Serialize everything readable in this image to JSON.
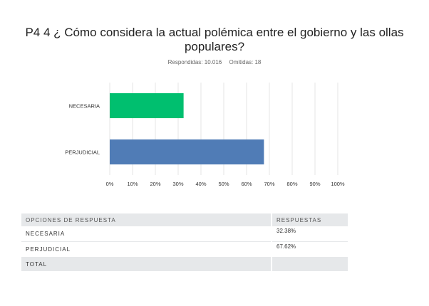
{
  "question": {
    "title_line1": "P4 4 ¿ Cómo considera la actual polémica entre el gobierno y las ollas",
    "title_line2": "populares?"
  },
  "stats": {
    "answered": "Respondidas: 10.016",
    "skipped": "Omitidas: 18"
  },
  "chart_data": {
    "type": "bar",
    "orientation": "horizontal",
    "categories": [
      "NECESARIA",
      "PERJUDICIAL"
    ],
    "values": [
      32.38,
      67.62
    ],
    "colors": [
      "#00bf6f",
      "#507cb6"
    ],
    "xlim": [
      0,
      100
    ],
    "xticks": [
      "0%",
      "10%",
      "20%",
      "30%",
      "40%",
      "50%",
      "60%",
      "70%",
      "80%",
      "90%",
      "100%"
    ],
    "grid": true,
    "title": "",
    "xlabel": "",
    "ylabel": ""
  },
  "table": {
    "headers": [
      "OPCIONES DE RESPUESTA",
      "RESPUESTAS"
    ],
    "rows": [
      {
        "option": "NECESARIA",
        "value": "32.38%"
      },
      {
        "option": "PERJUDICIAL",
        "value": "67.62%"
      }
    ],
    "total_label": "TOTAL",
    "total_value": ""
  }
}
